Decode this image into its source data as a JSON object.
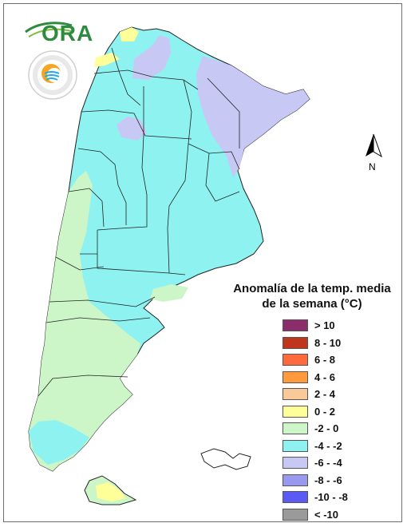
{
  "legend": {
    "title_line1": "Anomalía de la temp. media",
    "title_line2": "de la semana (°C)",
    "items": [
      {
        "label": "> 10",
        "color": "#8b2d6a"
      },
      {
        "label": "8 - 10",
        "color": "#c0361c"
      },
      {
        "label": "6 - 8",
        "color": "#ff6a3d"
      },
      {
        "label": "4 - 6",
        "color": "#ff9a3c"
      },
      {
        "label": "2 - 4",
        "color": "#f9c99a"
      },
      {
        "label": "0 - 2",
        "color": "#ffff99"
      },
      {
        "label": "-2 - 0",
        "color": "#ccf5c8"
      },
      {
        "label": "-4 - -2",
        "color": "#8df2f0"
      },
      {
        "label": "-6 - -4",
        "color": "#c8c8f4"
      },
      {
        "label": "-8 - -6",
        "color": "#9898ef"
      },
      {
        "label": "-10 - -8",
        "color": "#5a5af5"
      },
      {
        "label": "< -10",
        "color": "#9a9a9a"
      }
    ]
  },
  "north_arrow": {
    "label": "N",
    "icon": "north-arrow-icon"
  },
  "logos": {
    "ora_text": "ORA",
    "smn_icon": "smn-seal-icon"
  },
  "colors": {
    "anom_minus2_0": "#ccf5c8",
    "anom_minus4_minus2": "#8df2f0",
    "anom_minus6_minus4": "#c8c8f4",
    "anom_0_2": "#ffff99",
    "anom_2_4": "#f9c99a",
    "boundary": "#222222"
  }
}
